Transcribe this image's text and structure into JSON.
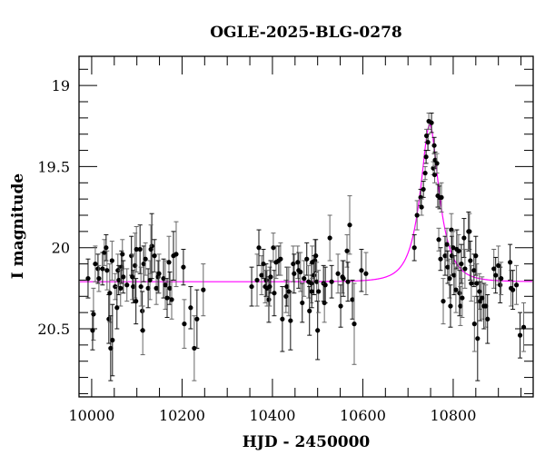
{
  "chart_data": {
    "type": "scatter",
    "title": "OGLE-2025-BLG-0278",
    "xlabel": "HJD - 2450000",
    "ylabel": "I magnitude",
    "xlim": [
      9972,
      10977
    ],
    "ylim": [
      20.92,
      18.82
    ],
    "y_inverted": true,
    "x_ticks": [
      10000,
      10200,
      10400,
      10600,
      10800
    ],
    "x_tick_labels": [
      "10000",
      "10200",
      "10400",
      "10600",
      "10800"
    ],
    "y_ticks": [
      19,
      19.5,
      20,
      20.5
    ],
    "y_tick_labels": [
      "19",
      "19.5",
      "20",
      "20.5"
    ],
    "grid": false,
    "colors": {
      "points": "#000000",
      "errorbars": "#555555",
      "model": "#ff00ff"
    },
    "model": {
      "type": "point-lens",
      "t0": 10748,
      "u0": 0.44,
      "tE": 38,
      "baseline_mag": 20.21
    },
    "points": [
      [
        9992,
        20.19,
        0.12
      ],
      [
        10004,
        20.41,
        0.16
      ],
      [
        10002,
        20.51,
        0.12
      ],
      [
        10008,
        20.1,
        0.11
      ],
      [
        10014,
        20.13,
        0.09
      ],
      [
        10016,
        20.19,
        0.08
      ],
      [
        10024,
        20.13,
        0.1
      ],
      [
        10028,
        20.03,
        0.08
      ],
      [
        10032,
        20.0,
        0.08
      ],
      [
        10034,
        20.14,
        0.12
      ],
      [
        10038,
        20.44,
        0.15
      ],
      [
        10040,
        20.28,
        0.18
      ],
      [
        10042,
        20.62,
        0.2
      ],
      [
        10045,
        20.08,
        0.12
      ],
      [
        10046,
        20.57,
        0.22
      ],
      [
        10052,
        20.24,
        0.08
      ],
      [
        10056,
        20.37,
        0.13
      ],
      [
        10058,
        20.14,
        0.1
      ],
      [
        10060,
        20.2,
        0.09
      ],
      [
        10064,
        20.25,
        0.11
      ],
      [
        10066,
        20.12,
        0.1
      ],
      [
        10068,
        20.04,
        0.09
      ],
      [
        10070,
        20.18,
        0.1
      ],
      [
        10078,
        20.23,
        0.1
      ],
      [
        10088,
        20.05,
        0.12
      ],
      [
        10090,
        20.18,
        0.14
      ],
      [
        10092,
        20.24,
        0.1
      ],
      [
        10096,
        20.11,
        0.2
      ],
      [
        10098,
        20.33,
        0.14
      ],
      [
        10099,
        20.01,
        0.14
      ],
      [
        10107,
        20.01,
        0.15
      ],
      [
        10109,
        20.24,
        0.12
      ],
      [
        10112,
        20.39,
        0.12
      ],
      [
        10113,
        20.51,
        0.15
      ],
      [
        10115,
        20.1,
        0.11
      ],
      [
        10119,
        20.07,
        0.1
      ],
      [
        10125,
        20.25,
        0.12
      ],
      [
        10129,
        20.2,
        0.12
      ],
      [
        10133,
        19.99,
        0.2
      ],
      [
        10131,
        20.01,
        0.15
      ],
      [
        10139,
        20.05,
        0.1
      ],
      [
        10143,
        20.25,
        0.1
      ],
      [
        10147,
        20.18,
        0.1
      ],
      [
        10149,
        20.16,
        0.12
      ],
      [
        10159,
        20.19,
        0.12
      ],
      [
        10163,
        20.23,
        0.15
      ],
      [
        10167,
        20.31,
        0.12
      ],
      [
        10171,
        20.09,
        0.16
      ],
      [
        10173,
        20.25,
        0.1
      ],
      [
        10177,
        20.32,
        0.12
      ],
      [
        10181,
        20.05,
        0.15
      ],
      [
        10187,
        20.04,
        0.2
      ],
      [
        10203,
        20.12,
        0.11
      ],
      [
        10205,
        20.47,
        0.15
      ],
      [
        10219,
        20.37,
        0.13
      ],
      [
        10227,
        20.62,
        0.2
      ],
      [
        10233,
        20.44,
        0.18
      ],
      [
        10247,
        20.26,
        0.16
      ],
      [
        10354,
        20.24,
        0.12
      ],
      [
        10366,
        20.2,
        0.16
      ],
      [
        10370,
        20.0,
        0.11
      ],
      [
        10376,
        20.17,
        0.12
      ],
      [
        10380,
        20.1,
        0.09
      ],
      [
        10384,
        20.24,
        0.1
      ],
      [
        10386,
        20.2,
        0.1
      ],
      [
        10388,
        20.25,
        0.11
      ],
      [
        10392,
        20.32,
        0.14
      ],
      [
        10394,
        20.24,
        0.12
      ],
      [
        10396,
        20.18,
        0.1
      ],
      [
        10402,
        20.0,
        0.09
      ],
      [
        10404,
        20.28,
        0.14
      ],
      [
        10408,
        20.09,
        0.1
      ],
      [
        10414,
        20.08,
        0.09
      ],
      [
        10418,
        20.07,
        0.1
      ],
      [
        10422,
        20.44,
        0.2
      ],
      [
        10430,
        20.3,
        0.1
      ],
      [
        10432,
        20.24,
        0.12
      ],
      [
        10436,
        20.27,
        0.15
      ],
      [
        10440,
        20.45,
        0.18
      ],
      [
        10446,
        20.1,
        0.11
      ],
      [
        10448,
        20.16,
        0.12
      ],
      [
        10456,
        20.09,
        0.1
      ],
      [
        10458,
        20.14,
        0.11
      ],
      [
        10462,
        20.15,
        0.12
      ],
      [
        10466,
        20.34,
        0.12
      ],
      [
        10470,
        20.19,
        0.11
      ],
      [
        10476,
        20.07,
        0.1
      ],
      [
        10480,
        20.21,
        0.1
      ],
      [
        10482,
        20.39,
        0.15
      ],
      [
        10486,
        20.22,
        0.12
      ],
      [
        10487,
        20.27,
        0.1
      ],
      [
        10488,
        20.09,
        0.1
      ],
      [
        10492,
        20.17,
        0.12
      ],
      [
        10494,
        20.08,
        0.13
      ],
      [
        10496,
        20.05,
        0.1
      ],
      [
        10498,
        20.21,
        0.12
      ],
      [
        10500,
        20.51,
        0.18
      ],
      [
        10502,
        20.27,
        0.13
      ],
      [
        10513,
        20.22,
        0.11
      ],
      [
        10515,
        20.34,
        0.12
      ],
      [
        10517,
        20.23,
        0.11
      ],
      [
        10527,
        19.94,
        0.14
      ],
      [
        10531,
        20.21,
        0.1
      ],
      [
        10545,
        20.16,
        0.12
      ],
      [
        10551,
        20.36,
        0.13
      ],
      [
        10555,
        20.18,
        0.1
      ],
      [
        10557,
        20.19,
        0.11
      ],
      [
        10565,
        20.02,
        0.1
      ],
      [
        10567,
        20.21,
        0.12
      ],
      [
        10571,
        19.86,
        0.18
      ],
      [
        10577,
        20.32,
        0.12
      ],
      [
        10581,
        20.47,
        0.25
      ],
      [
        10597,
        20.14,
        0.13
      ],
      [
        10607,
        20.16,
        0.13
      ],
      [
        10714,
        20.0,
        0.08
      ],
      [
        10720,
        19.8,
        0.09
      ],
      [
        10728,
        19.69,
        0.05
      ],
      [
        10730,
        19.75,
        0.05
      ],
      [
        10734,
        19.64,
        0.05
      ],
      [
        10738,
        19.54,
        0.04
      ],
      [
        10740,
        19.44,
        0.04
      ],
      [
        10741,
        19.31,
        0.04
      ],
      [
        10744,
        19.35,
        0.05
      ],
      [
        10746,
        19.22,
        0.05
      ],
      [
        10752,
        19.23,
        0.06
      ],
      [
        10756,
        19.51,
        0.04
      ],
      [
        10758,
        19.37,
        0.05
      ],
      [
        10759,
        19.55,
        0.05
      ],
      [
        10760,
        19.46,
        0.05
      ],
      [
        10764,
        19.48,
        0.06
      ],
      [
        10766,
        19.68,
        0.07
      ],
      [
        10768,
        19.95,
        0.07
      ],
      [
        10770,
        19.69,
        0.07
      ],
      [
        10774,
        19.69,
        0.09
      ],
      [
        10772,
        20.07,
        0.07
      ],
      [
        10778,
        20.33,
        0.14
      ],
      [
        10782,
        20.05,
        0.12
      ],
      [
        10786,
        19.98,
        0.1
      ],
      [
        10788,
        20.12,
        0.1
      ],
      [
        10792,
        20.19,
        0.12
      ],
      [
        10794,
        20.36,
        0.13
      ],
      [
        10796,
        19.89,
        0.1
      ],
      [
        10797,
        20.05,
        0.12
      ],
      [
        10800,
        20.0,
        0.1
      ],
      [
        10802,
        20.17,
        0.12
      ],
      [
        10806,
        20.26,
        0.14
      ],
      [
        10808,
        20.01,
        0.12
      ],
      [
        10812,
        20.02,
        0.1
      ],
      [
        10814,
        20.28,
        0.14
      ],
      [
        10816,
        20.36,
        0.12
      ],
      [
        10818,
        20.1,
        0.12
      ],
      [
        10820,
        20.31,
        0.12
      ],
      [
        10824,
        19.94,
        0.12
      ],
      [
        10826,
        20.13,
        0.12
      ],
      [
        10834,
        19.9,
        0.12
      ],
      [
        10836,
        19.9,
        0.11
      ],
      [
        10838,
        20.08,
        0.12
      ],
      [
        10840,
        20.22,
        0.11
      ],
      [
        10846,
        20.14,
        0.1
      ],
      [
        10847,
        20.47,
        0.17
      ],
      [
        10850,
        20.05,
        0.12
      ],
      [
        10852,
        20.22,
        0.12
      ],
      [
        10854,
        20.56,
        0.26
      ],
      [
        10858,
        20.27,
        0.11
      ],
      [
        10860,
        20.33,
        0.12
      ],
      [
        10864,
        20.31,
        0.13
      ],
      [
        10868,
        20.36,
        0.14
      ],
      [
        10872,
        20.36,
        0.13
      ],
      [
        10876,
        20.44,
        0.15
      ],
      [
        10890,
        20.13,
        0.12
      ],
      [
        10894,
        20.17,
        0.11
      ],
      [
        10900,
        20.11,
        0.12
      ],
      [
        10904,
        20.23,
        0.11
      ],
      [
        10906,
        20.19,
        0.1
      ],
      [
        10926,
        20.09,
        0.11
      ],
      [
        10928,
        20.25,
        0.11
      ],
      [
        10932,
        20.26,
        0.12
      ],
      [
        10940,
        20.23,
        0.12
      ],
      [
        10948,
        20.54,
        0.14
      ],
      [
        10956,
        20.49,
        0.15
      ]
    ]
  }
}
